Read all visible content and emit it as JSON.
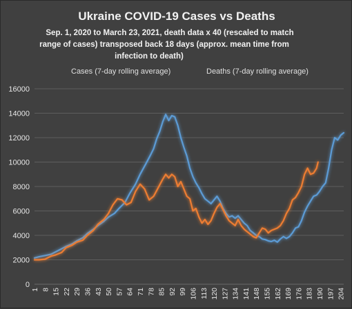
{
  "chart_data": {
    "type": "line",
    "title": "Ukraine COVID-19 Cases vs Deaths",
    "subtitle_lines": [
      "Sep. 1, 2020 to March  23, 2021, death data x 40 (rescaled to match",
      "range of cases)  transposed back 18 days (approx. mean time from",
      "infection to death)"
    ],
    "xlabel": "",
    "ylabel": "",
    "ylim": [
      0,
      16000
    ],
    "yticks": [
      0,
      2000,
      4000,
      6000,
      8000,
      10000,
      12000,
      14000,
      16000
    ],
    "xlim": [
      1,
      206
    ],
    "xticks": [
      1,
      8,
      15,
      22,
      29,
      36,
      43,
      50,
      57,
      64,
      71,
      78,
      85,
      92,
      99,
      106,
      113,
      120,
      127,
      134,
      141,
      148,
      155,
      162,
      169,
      176,
      183,
      190,
      197,
      204
    ],
    "grid": true,
    "legend_position": "top",
    "series": [
      {
        "name": "Cases (7-day rolling average)",
        "color": "#5b9bd5",
        "x": [
          1,
          4,
          8,
          12,
          15,
          19,
          22,
          26,
          29,
          33,
          36,
          40,
          43,
          47,
          50,
          54,
          57,
          61,
          64,
          68,
          71,
          75,
          78,
          80,
          82,
          84,
          86,
          88,
          90,
          92,
          94,
          96,
          98,
          100,
          102,
          104,
          106,
          108,
          110,
          112,
          114,
          116,
          118,
          120,
          122,
          124,
          126,
          128,
          130,
          132,
          134,
          136,
          138,
          140,
          142,
          144,
          146,
          148,
          150,
          152,
          154,
          156,
          158,
          160,
          162,
          164,
          166,
          168,
          170,
          172,
          174,
          176,
          178,
          180,
          182,
          184,
          186,
          188,
          190,
          192,
          194,
          196,
          198,
          200,
          202,
          204,
          206
        ],
        "y": [
          2150,
          2250,
          2350,
          2450,
          2650,
          2900,
          3100,
          3300,
          3550,
          3800,
          4150,
          4500,
          4800,
          5150,
          5500,
          5800,
          6200,
          6700,
          7400,
          8200,
          9000,
          9900,
          10600,
          11100,
          11900,
          12500,
          13300,
          13900,
          13400,
          13800,
          13700,
          13000,
          12000,
          11200,
          10500,
          9500,
          8800,
          8300,
          7900,
          7400,
          7000,
          6800,
          6600,
          6900,
          7200,
          6800,
          6200,
          5800,
          5500,
          5600,
          5400,
          5600,
          5300,
          5000,
          4800,
          4400,
          4200,
          4000,
          3900,
          3700,
          3650,
          3550,
          3500,
          3600,
          3450,
          3700,
          3900,
          3750,
          3900,
          4200,
          4600,
          4700,
          5200,
          5900,
          6400,
          6800,
          7200,
          7300,
          7600,
          8000,
          8300,
          9500,
          11000,
          12000,
          11800,
          12200,
          12400
        ]
      },
      {
        "name": "Deaths (7-day rolling average)",
        "color": "#ed7d31",
        "x": [
          1,
          4,
          8,
          12,
          15,
          19,
          22,
          26,
          29,
          33,
          36,
          40,
          43,
          47,
          50,
          53,
          56,
          59,
          62,
          65,
          68,
          71,
          74,
          77,
          80,
          83,
          86,
          88,
          90,
          92,
          94,
          96,
          98,
          100,
          102,
          104,
          106,
          108,
          110,
          112,
          114,
          116,
          118,
          120,
          122,
          124,
          126,
          128,
          130,
          132,
          134,
          136,
          138,
          140,
          142,
          144,
          146,
          148,
          150,
          152,
          154,
          156,
          158,
          160,
          162,
          164,
          166,
          168,
          170,
          172,
          174,
          176,
          178,
          180,
          182,
          184,
          186,
          188,
          189
        ],
        "y": [
          2000,
          2000,
          2050,
          2300,
          2400,
          2600,
          3000,
          3200,
          3450,
          3600,
          4000,
          4400,
          4900,
          5300,
          5800,
          6500,
          7000,
          6900,
          6500,
          6700,
          7600,
          8200,
          7800,
          6900,
          7200,
          7900,
          8600,
          9000,
          8700,
          9000,
          8800,
          8000,
          8400,
          7800,
          7200,
          7000,
          6000,
          6200,
          5500,
          5000,
          5300,
          4900,
          5200,
          5800,
          6300,
          6600,
          6100,
          5600,
          5200,
          5000,
          4800,
          5300,
          4800,
          4500,
          4300,
          4100,
          3900,
          3800,
          4200,
          4600,
          4500,
          4200,
          4400,
          4500,
          4600,
          4800,
          5200,
          5800,
          6200,
          6900,
          7100,
          7500,
          8000,
          9000,
          9500,
          9000,
          9100,
          9500,
          10000
        ]
      }
    ]
  }
}
